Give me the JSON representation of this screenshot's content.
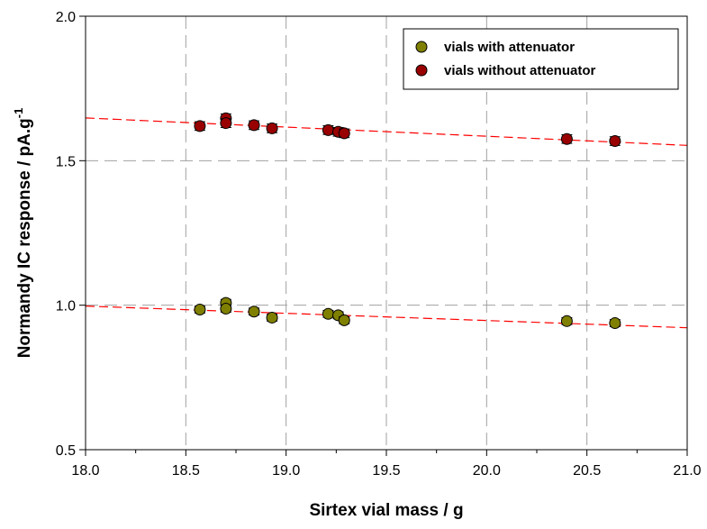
{
  "chart_data": {
    "type": "scatter",
    "xlabel": "Sirtex vial mass / g",
    "ylabel": "Normandy IC response / pA.g",
    "ylabel_superscript": "-1",
    "xlim": [
      18.0,
      21.0
    ],
    "ylim": [
      0.5,
      2.0
    ],
    "x_ticks": [
      "18.0",
      "18.5",
      "19.0",
      "19.5",
      "20.0",
      "20.5",
      "21.0"
    ],
    "y_ticks": [
      "0.5",
      "1.0",
      "1.5",
      "2.0"
    ],
    "grid": true,
    "legend_position": "top-right",
    "series": [
      {
        "name": "vials with attenuator",
        "color": "#808000",
        "x": [
          18.57,
          18.7,
          18.7,
          18.84,
          18.93,
          19.21,
          19.26,
          19.29,
          20.4,
          20.64
        ],
        "y": [
          0.985,
          1.008,
          0.988,
          0.978,
          0.957,
          0.97,
          0.965,
          0.948,
          0.945,
          0.938
        ],
        "yerr": [
          0.012,
          0.012,
          0.012,
          0.012,
          0.012,
          0.012,
          0.012,
          0.012,
          0.012,
          0.012
        ]
      },
      {
        "name": "vials without attenuator",
        "color": "#990000",
        "x": [
          18.57,
          18.7,
          18.7,
          18.84,
          18.93,
          19.21,
          19.26,
          19.29,
          20.4,
          20.64
        ],
        "y": [
          1.62,
          1.647,
          1.63,
          1.623,
          1.612,
          1.606,
          1.6,
          1.595,
          1.575,
          1.568
        ],
        "yerr": [
          0.015,
          0.015,
          0.015,
          0.015,
          0.015,
          0.015,
          0.015,
          0.015,
          0.015,
          0.015
        ]
      }
    ],
    "fit_lines": [
      {
        "series": "vials with attenuator",
        "color": "#ff0000",
        "style": "dashed",
        "x": [
          18.0,
          21.0
        ],
        "y": [
          0.997,
          0.922
        ]
      },
      {
        "series": "vials without attenuator",
        "color": "#ff0000",
        "style": "dashed",
        "x": [
          18.0,
          21.0
        ],
        "y": [
          1.648,
          1.553
        ]
      }
    ]
  }
}
